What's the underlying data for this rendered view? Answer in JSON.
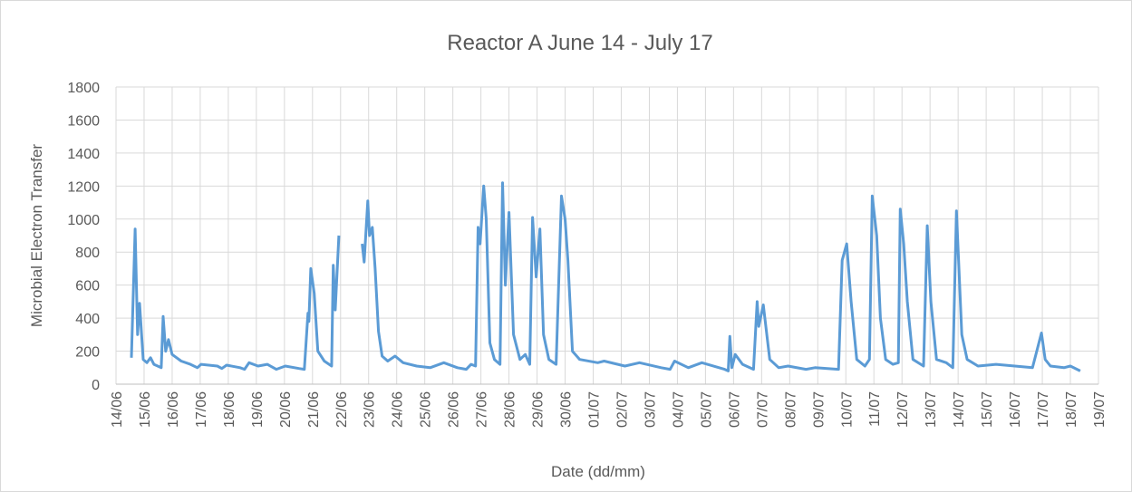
{
  "chart_data": {
    "type": "line",
    "title": "Reactor A June 14 - July 17",
    "x_label": "Date (dd/mm)",
    "y_label": "Microbial Electron Transfer",
    "xlim": [
      0,
      35
    ],
    "ylim": [
      0,
      1800
    ],
    "yticks": [
      0,
      200,
      400,
      600,
      800,
      1000,
      1200,
      1400,
      1600,
      1800
    ],
    "xticks": [
      {
        "value": 0,
        "label": "14/06"
      },
      {
        "value": 1,
        "label": "15/06"
      },
      {
        "value": 2,
        "label": "16/06"
      },
      {
        "value": 3,
        "label": "17/06"
      },
      {
        "value": 4,
        "label": "18/06"
      },
      {
        "value": 5,
        "label": "19/06"
      },
      {
        "value": 6,
        "label": "20/06"
      },
      {
        "value": 7,
        "label": "21/06"
      },
      {
        "value": 8,
        "label": "22/06"
      },
      {
        "value": 9,
        "label": "23/06"
      },
      {
        "value": 10,
        "label": "24/06"
      },
      {
        "value": 11,
        "label": "25/06"
      },
      {
        "value": 12,
        "label": "26/06"
      },
      {
        "value": 13,
        "label": "27/06"
      },
      {
        "value": 14,
        "label": "28/06"
      },
      {
        "value": 15,
        "label": "29/06"
      },
      {
        "value": 16,
        "label": "30/06"
      },
      {
        "value": 17,
        "label": "01/07"
      },
      {
        "value": 18,
        "label": "02/07"
      },
      {
        "value": 19,
        "label": "03/07"
      },
      {
        "value": 20,
        "label": "04/07"
      },
      {
        "value": 21,
        "label": "05/07"
      },
      {
        "value": 22,
        "label": "06/07"
      },
      {
        "value": 23,
        "label": "07/07"
      },
      {
        "value": 24,
        "label": "08/07"
      },
      {
        "value": 25,
        "label": "09/07"
      },
      {
        "value": 26,
        "label": "10/07"
      },
      {
        "value": 27,
        "label": "11/07"
      },
      {
        "value": 28,
        "label": "12/07"
      },
      {
        "value": 29,
        "label": "13/07"
      },
      {
        "value": 30,
        "label": "14/07"
      },
      {
        "value": 31,
        "label": "15/07"
      },
      {
        "value": 32,
        "label": "16/07"
      },
      {
        "value": 33,
        "label": "17/07"
      },
      {
        "value": 34,
        "label": "18/07"
      },
      {
        "value": 35,
        "label": "19/07"
      }
    ],
    "grid": true,
    "x": [
      0.55,
      0.68,
      0.77,
      0.84,
      0.97,
      1.1,
      1.23,
      1.35,
      1.61,
      1.68,
      1.77,
      1.87,
      2.0,
      2.32,
      2.65,
      2.9,
      3.03,
      3.61,
      3.77,
      3.94,
      4.42,
      4.58,
      4.74,
      5.06,
      5.39,
      5.71,
      6.03,
      6.52,
      6.71,
      6.84,
      6.87,
      6.94,
      7.06,
      7.19,
      7.42,
      7.68,
      7.74,
      7.81,
      7.94,
      8.3,
      8.77,
      8.84,
      8.97,
      9.03,
      9.13,
      9.23,
      9.35,
      9.48,
      9.68,
      9.94,
      10.23,
      10.71,
      11.19,
      11.68,
      12.16,
      12.48,
      12.65,
      12.81,
      12.9,
      12.97,
      13.1,
      13.19,
      13.32,
      13.48,
      13.68,
      13.77,
      13.87,
      14.0,
      14.16,
      14.39,
      14.58,
      14.74,
      14.84,
      14.97,
      15.1,
      15.23,
      15.42,
      15.68,
      15.87,
      16.0,
      16.1,
      16.26,
      16.52,
      17.16,
      17.39,
      18.13,
      18.65,
      19.42,
      19.74,
      19.9,
      20.39,
      20.87,
      21.68,
      21.81,
      21.87,
      21.94,
      22.06,
      22.32,
      22.71,
      22.84,
      22.9,
      23.06,
      23.29,
      23.61,
      23.94,
      24.58,
      24.9,
      25.74,
      25.87,
      26.03,
      26.19,
      26.39,
      26.68,
      26.84,
      26.94,
      27.1,
      27.23,
      27.42,
      27.68,
      27.87,
      27.94,
      28.06,
      28.19,
      28.39,
      28.77,
      28.9,
      29.03,
      29.23,
      29.58,
      29.81,
      29.94,
      30.13,
      30.32,
      30.71,
      31.35,
      32.65,
      32.97,
      33.1,
      33.29,
      33.77,
      34.0,
      34.35
    ],
    "series": [
      {
        "name": "Reactor A",
        "color": "#5b9bd5",
        "values": [
          160,
          940,
          300,
          490,
          150,
          130,
          160,
          120,
          100,
          410,
          200,
          270,
          180,
          140,
          120,
          100,
          120,
          110,
          95,
          115,
          100,
          90,
          130,
          110,
          120,
          90,
          110,
          95,
          90,
          430,
          380,
          700,
          550,
          200,
          140,
          110,
          720,
          450,
          900,
          null,
          850,
          740,
          1110,
          900,
          950,
          700,
          320,
          170,
          140,
          170,
          130,
          110,
          100,
          130,
          100,
          90,
          120,
          110,
          950,
          850,
          1200,
          1000,
          250,
          150,
          120,
          1220,
          600,
          1040,
          300,
          150,
          180,
          120,
          1010,
          650,
          940,
          300,
          150,
          120,
          1140,
          1000,
          750,
          200,
          150,
          130,
          140,
          110,
          130,
          100,
          90,
          140,
          100,
          130,
          90,
          80,
          290,
          100,
          180,
          120,
          90,
          500,
          350,
          480,
          150,
          100,
          110,
          90,
          100,
          90,
          750,
          850,
          500,
          150,
          110,
          150,
          1140,
          900,
          400,
          150,
          120,
          130,
          1060,
          850,
          500,
          150,
          110,
          960,
          500,
          150,
          130,
          100,
          1050,
          300,
          150,
          110,
          120,
          100,
          310,
          150,
          110,
          100,
          110,
          80
        ]
      }
    ]
  }
}
